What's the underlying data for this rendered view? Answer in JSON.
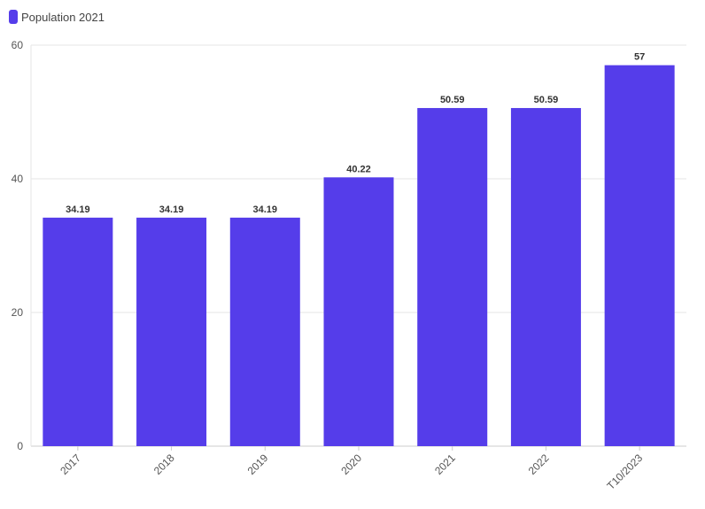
{
  "legend": {
    "label": "Population 2021"
  },
  "colors": {
    "bar": "#553DEA",
    "grid": "#e6e6e6",
    "axis": "#cccccc"
  },
  "chart_data": {
    "type": "bar",
    "categories": [
      "2017",
      "2018",
      "2019",
      "2020",
      "2021",
      "2022",
      "T10/2023"
    ],
    "series": [
      {
        "name": "Population 2021",
        "values": [
          34.19,
          34.19,
          34.19,
          40.22,
          50.59,
          50.59,
          57
        ]
      }
    ],
    "value_labels": [
      "34.19",
      "34.19",
      "34.19",
      "40.22",
      "50.59",
      "50.59",
      "57"
    ],
    "yticks": [
      0,
      20,
      40,
      60
    ],
    "ylim": [
      0,
      60
    ],
    "title": "",
    "xlabel": "",
    "ylabel": "",
    "grid": true,
    "legend_position": "top-left"
  }
}
